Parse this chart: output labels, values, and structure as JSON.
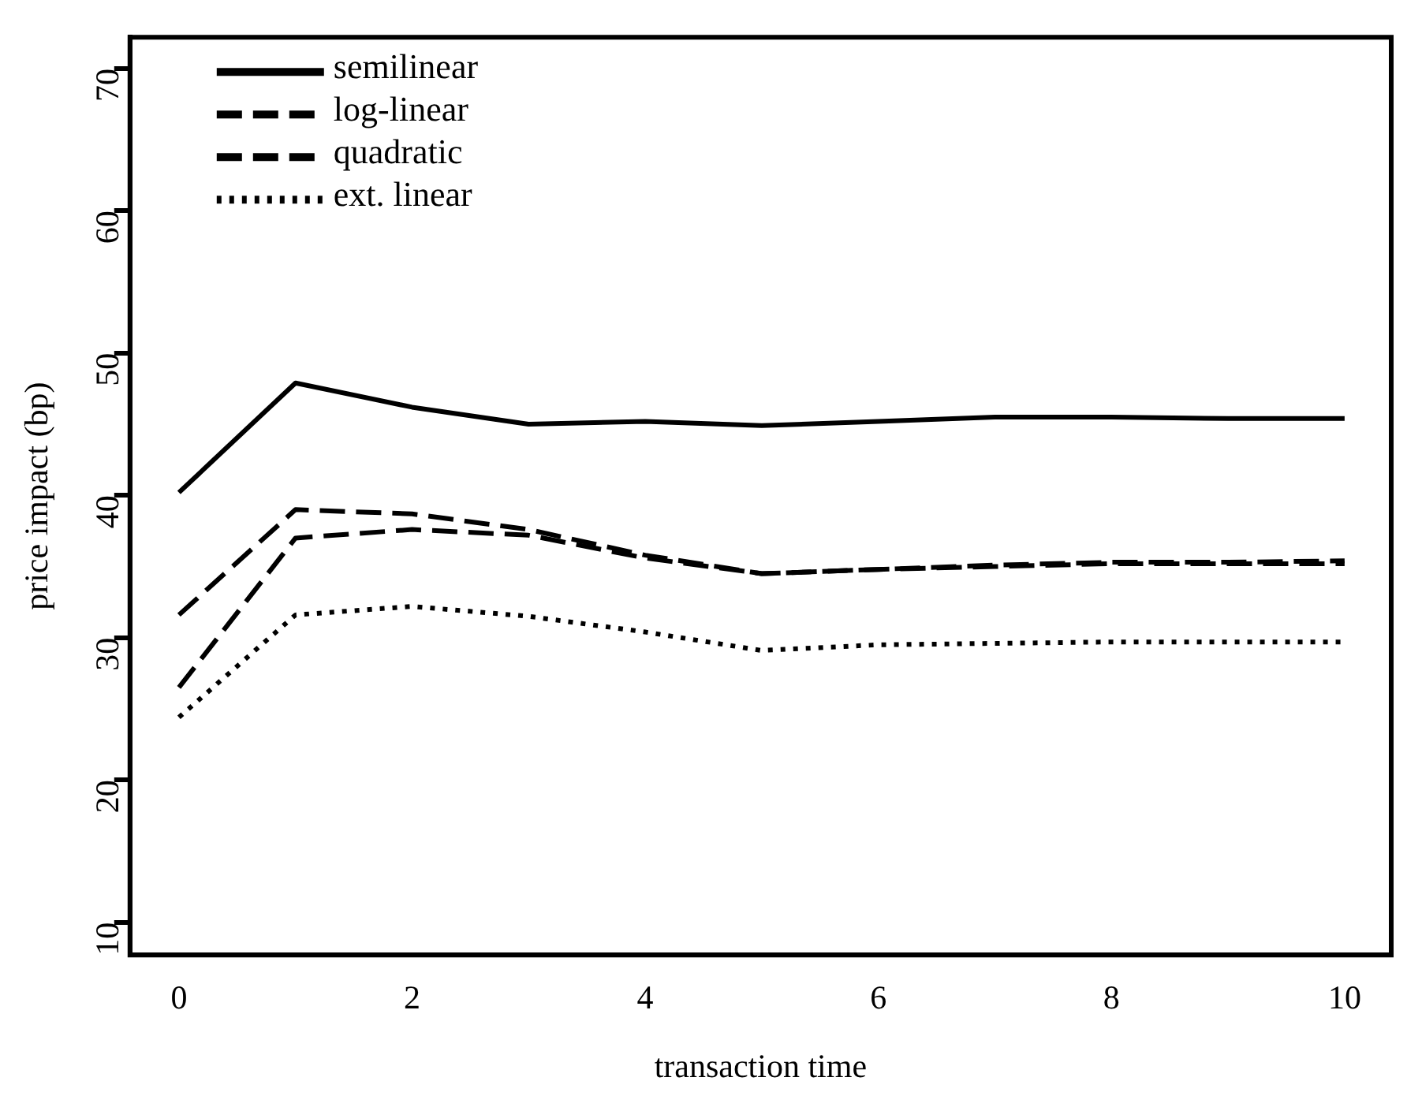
{
  "chart_data": {
    "type": "line",
    "xlabel": "transaction time",
    "ylabel": "price impact (bp)",
    "x": [
      0,
      1,
      2,
      3,
      4,
      5,
      6,
      7,
      8,
      9,
      10
    ],
    "series": [
      {
        "name": "semilinear",
        "color": "#000000",
        "line_style": "solid",
        "values": [
          40.2,
          47.9,
          46.2,
          45.0,
          45.2,
          44.9,
          45.2,
          45.5,
          45.5,
          45.4,
          45.4
        ]
      },
      {
        "name": "log-linear",
        "color": "#000000",
        "line_style": "dashed",
        "values": [
          26.5,
          37.0,
          37.6,
          37.2,
          35.6,
          34.5,
          34.8,
          35.0,
          35.2,
          35.2,
          35.2
        ]
      },
      {
        "name": "quadratic",
        "color": "#000000",
        "line_style": "dashed",
        "values": [
          31.6,
          39.0,
          38.7,
          37.6,
          35.8,
          34.5,
          34.8,
          35.1,
          35.3,
          35.3,
          35.4
        ]
      },
      {
        "name": "ext. linear",
        "color": "#000000",
        "line_style": "dotted",
        "values": [
          24.4,
          31.6,
          32.2,
          31.5,
          30.4,
          29.1,
          29.5,
          29.6,
          29.7,
          29.7,
          29.7
        ]
      }
    ],
    "xlim": [
      -0.42,
      10.4
    ],
    "xticks": [
      0,
      2,
      4,
      6,
      8,
      10
    ],
    "ylim": [
      7.7,
      72.2
    ],
    "yticks": [
      10,
      20,
      30,
      40,
      50,
      60,
      70
    ],
    "grid": false,
    "legend": "top left",
    "marker": "none"
  }
}
